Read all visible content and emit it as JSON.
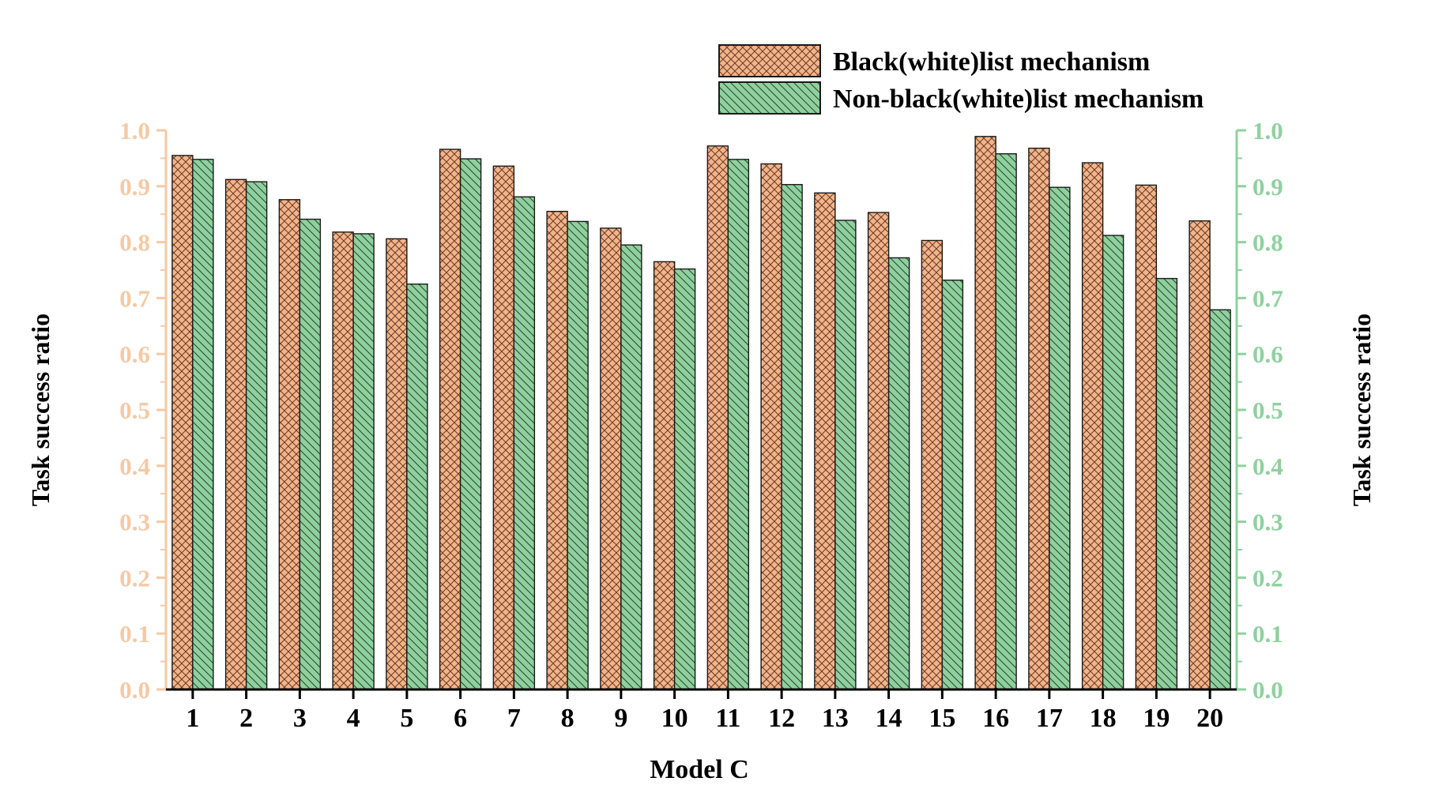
{
  "chart_data": {
    "type": "bar",
    "title": "",
    "xlabel": "Model C",
    "ylabel": "Task success ratio",
    "ylabel_right": "Task success ratio",
    "ylim": [
      0.0,
      1.0
    ],
    "y_ticks": [
      "0.0",
      "0.1",
      "0.2",
      "0.3",
      "0.4",
      "0.5",
      "0.6",
      "0.7",
      "0.8",
      "0.9",
      "1.0"
    ],
    "categories": [
      "1",
      "2",
      "3",
      "4",
      "5",
      "6",
      "7",
      "8",
      "9",
      "10",
      "11",
      "12",
      "13",
      "14",
      "15",
      "16",
      "17",
      "18",
      "19",
      "20"
    ],
    "series": [
      {
        "name": "Black(white)list mechanism",
        "color": "#f2b48b",
        "pattern": "crosshatch",
        "values": [
          0.955,
          0.912,
          0.876,
          0.818,
          0.806,
          0.966,
          0.936,
          0.855,
          0.825,
          0.765,
          0.972,
          0.94,
          0.888,
          0.853,
          0.803,
          0.989,
          0.968,
          0.942,
          0.902,
          0.838
        ]
      },
      {
        "name": "Non-black(white)list mechanism",
        "color": "#8fd19e",
        "pattern": "diagonal",
        "values": [
          0.948,
          0.908,
          0.841,
          0.815,
          0.725,
          0.949,
          0.881,
          0.837,
          0.795,
          0.752,
          0.948,
          0.903,
          0.839,
          0.772,
          0.732,
          0.958,
          0.898,
          0.812,
          0.735,
          0.679
        ]
      }
    ],
    "left_axis_color": "#f5c9a4",
    "right_axis_color": "#8fd19e",
    "legend_position": "top-right",
    "grid": false
  }
}
